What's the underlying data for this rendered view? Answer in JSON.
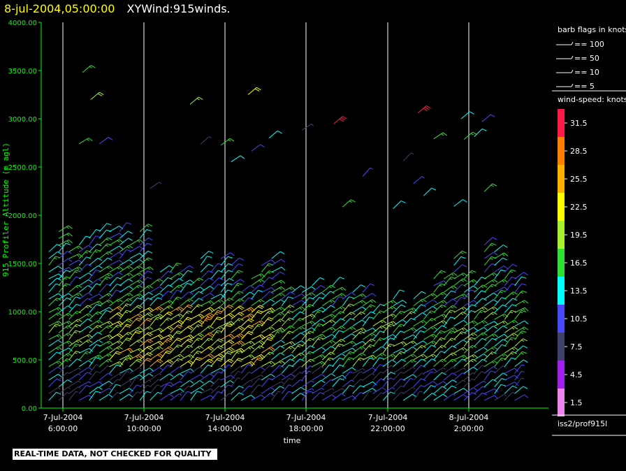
{
  "header": {
    "date_label": "8-jul-2004,05:00:00",
    "title": "XYWind:915winds."
  },
  "notice": "REAL-TIME DATA, NOT CHECKED FOR QUALITY",
  "chart_data": {
    "type": "wind-barb time-height",
    "ylabel": "915 Profiler Altitude (m agl)",
    "xlabel": "time",
    "ylim": [
      0,
      4000
    ],
    "y_ticks": [
      "0.00",
      "500.00",
      "1000.00",
      "1500.00",
      "2000.00",
      "2500.00",
      "3000.00",
      "3500.00",
      "4000.00"
    ],
    "x_ticks": [
      {
        "date": "7-Jul-2004",
        "time": "6:00:00"
      },
      {
        "date": "7-Jul-2004",
        "time": "10:00:00"
      },
      {
        "date": "7-Jul-2004",
        "time": "14:00:00"
      },
      {
        "date": "7-Jul-2004",
        "time": "18:00:00"
      },
      {
        "date": "7-Jul-2004",
        "time": "22:00:00"
      },
      {
        "date": "8-Jul-2004",
        "time": "2:00:00"
      }
    ],
    "x_range_hours": [
      "7-Jul-2004 5:00",
      "8-Jul-2004 5:00"
    ],
    "grid": "vertical lines at each x tick",
    "legend_barbs": {
      "title": "barb flags in knots",
      "items": [
        "== 100",
        "== 50",
        "== 10",
        "== 5"
      ]
    },
    "legend_speed": {
      "title": "wind-speed: knots",
      "levels": [
        {
          "label": "31.5",
          "color": "#ff1a4a"
        },
        {
          "label": "28.5",
          "color": "#ff8000"
        },
        {
          "label": "25.5",
          "color": "#ffb000"
        },
        {
          "label": "22.5",
          "color": "#ffff00"
        },
        {
          "label": "19.5",
          "color": "#a8f030"
        },
        {
          "label": "16.5",
          "color": "#30e030"
        },
        {
          "label": "13.5",
          "color": "#00ffff"
        },
        {
          "label": "10.5",
          "color": "#4848ff"
        },
        {
          "label": "7.5",
          "color": "#404068"
        },
        {
          "label": "4.5",
          "color": "#a020f0"
        },
        {
          "label": "1.5",
          "color": "#ee82ee"
        }
      ]
    },
    "station": "iss2/prof915l"
  }
}
